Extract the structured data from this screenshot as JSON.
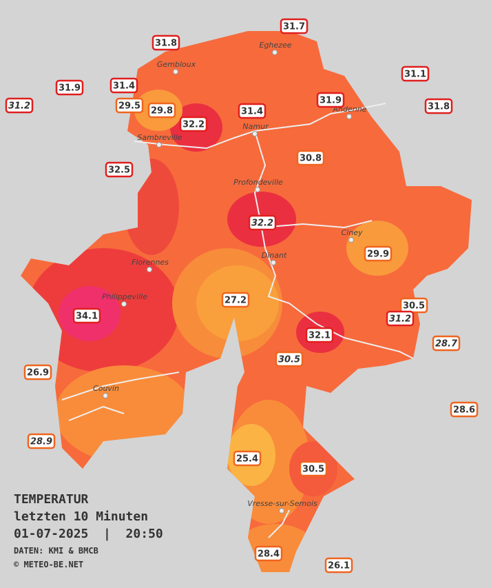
{
  "caption": {
    "title": "TEMPERATUR",
    "subtitle": "letzten 10 Minuten",
    "datetime": "01-07-2025  |  20:50",
    "source": "DATEN: KMI & BMCB",
    "credit": "© METEO-BE.NET"
  },
  "cities": [
    "Eghezee",
    "Gembloux",
    "Andenne",
    "Namur",
    "Sambreville",
    "Profondeville",
    "Ciney",
    "Dinant",
    "Florennes",
    "Philippeville",
    "Couvin",
    "Vresse-sur-Semois"
  ],
  "stations": [
    {
      "value": 31.7
    },
    {
      "value": 31.8
    },
    {
      "value": 31.9
    },
    {
      "value": 31.2,
      "italic": true
    },
    {
      "value": 31.4
    },
    {
      "value": 29.5
    },
    {
      "value": 29.8
    },
    {
      "value": 32.2
    },
    {
      "value": 31.4
    },
    {
      "value": 31.9
    },
    {
      "value": 31.1
    },
    {
      "value": 31.8
    },
    {
      "value": 32.5
    },
    {
      "value": 30.8
    },
    {
      "value": 32.2,
      "italic": true
    },
    {
      "value": 29.9
    },
    {
      "value": 27.2
    },
    {
      "value": 34.1
    },
    {
      "value": 30.5
    },
    {
      "value": 31.2,
      "italic": true
    },
    {
      "value": 28.7,
      "italic": true
    },
    {
      "value": 32.1
    },
    {
      "value": 30.5,
      "italic": true
    },
    {
      "value": 26.9
    },
    {
      "value": 28.6
    },
    {
      "value": 28.9,
      "italic": true
    },
    {
      "value": 25.4
    },
    {
      "value": 30.5
    },
    {
      "value": 28.4
    },
    {
      "value": 26.1
    }
  ]
}
